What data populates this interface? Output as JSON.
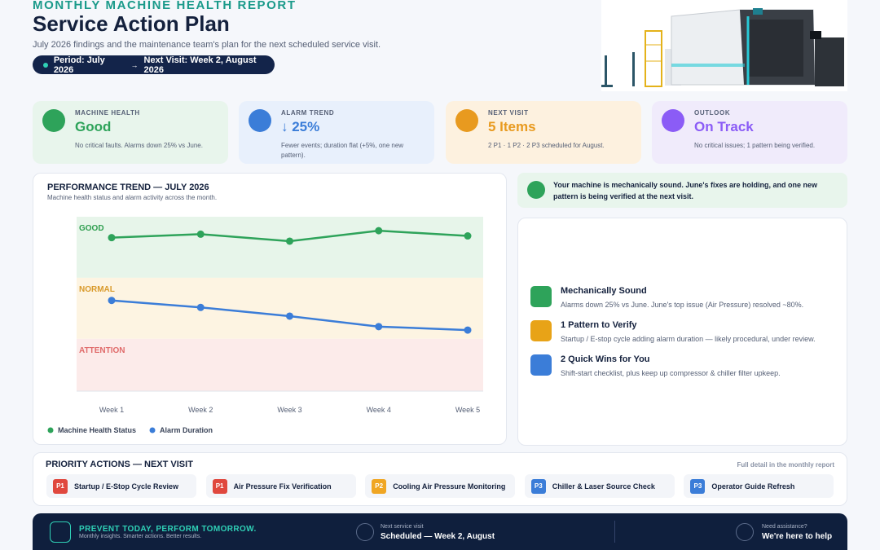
{
  "header": {
    "kicker": "MONTHLY MACHINE HEALTH REPORT",
    "title": "Service Action Plan",
    "subtitle": "July 2026 findings and the maintenance team's plan for the next scheduled service visit.",
    "period": "Period: July 2026",
    "separator": "→",
    "next_visit": "Next Visit: Week 2, August 2026"
  },
  "cards": [
    {
      "label": "MACHINE HEALTH",
      "value": "Good",
      "note": "No critical faults. Alarms down 25% vs June."
    },
    {
      "label": "ALARM TREND",
      "value": "↓ 25%",
      "note": "Fewer events; duration flat (+5%, one new pattern)."
    },
    {
      "label": "NEXT VISIT",
      "value": "5 Items",
      "note": "2 P1 · 1 P2 · 2 P3 scheduled for August."
    },
    {
      "label": "OUTLOOK",
      "value": "On Track",
      "note": "No critical issues; 1 pattern being verified."
    }
  ],
  "chart_data": {
    "type": "line",
    "title": "PERFORMANCE TREND — JULY 2026",
    "subtitle": "Machine health status and alarm activity across the month.",
    "categories": [
      "Week 1",
      "Week 2",
      "Week 3",
      "Week 4",
      "Week 5"
    ],
    "ylim": [
      0,
      100
    ],
    "bands": [
      {
        "label": "GOOD",
        "from": 65,
        "to": 100,
        "color": "#e7f5ea",
        "text_color": "#2e9e4f"
      },
      {
        "label": "NORMAL",
        "from": 30,
        "to": 65,
        "color": "#fdf4e2",
        "text_color": "#d99a2b"
      },
      {
        "label": "ATTENTION",
        "from": 0,
        "to": 30,
        "color": "#fcebea",
        "text_color": "#e06b6b"
      }
    ],
    "series": [
      {
        "name": "Machine Health Status",
        "color": "#2ea35a",
        "values": [
          88,
          90,
          86,
          92,
          89
        ]
      },
      {
        "name": "Alarm Duration",
        "color": "#3b7dd8",
        "values": [
          52,
          48,
          43,
          37,
          35
        ]
      }
    ]
  },
  "status": "Your machine is mechanically sound. June's fixes are holding, and one new pattern is being verified at the next visit.",
  "highlights": [
    {
      "title": "Mechanically Sound",
      "text": "Alarms down 25% vs June. June's top issue (Air Pressure) resolved ~80%."
    },
    {
      "title": "1 Pattern to Verify",
      "text": "Startup / E-stop cycle adding alarm duration — likely procedural, under review."
    },
    {
      "title": "2 Quick Wins for You",
      "text": "Shift-start checklist, plus keep up compressor & chiller filter upkeep."
    }
  ],
  "actions": {
    "title": "PRIORITY ACTIONS — NEXT VISIT",
    "note": "Full detail in the monthly report",
    "items": [
      {
        "priority": "P1",
        "label": "Startup / E-Stop Cycle Review"
      },
      {
        "priority": "P1",
        "label": "Air Pressure Fix Verification"
      },
      {
        "priority": "P2",
        "label": "Cooling Air Pressure Monitoring"
      },
      {
        "priority": "P3",
        "label": "Chiller & Laser Source Check"
      },
      {
        "priority": "P3",
        "label": "Operator Guide Refresh"
      }
    ]
  },
  "footer": {
    "slogan": "PREVENT TODAY, PERFORM TOMORROW.",
    "tagline": "Monthly insights. Smarter actions. Better results.",
    "service_label": "Next service visit",
    "service_value": "Scheduled — Week 2, August",
    "help_label": "Need assistance?",
    "help_value": "We're here to help"
  }
}
